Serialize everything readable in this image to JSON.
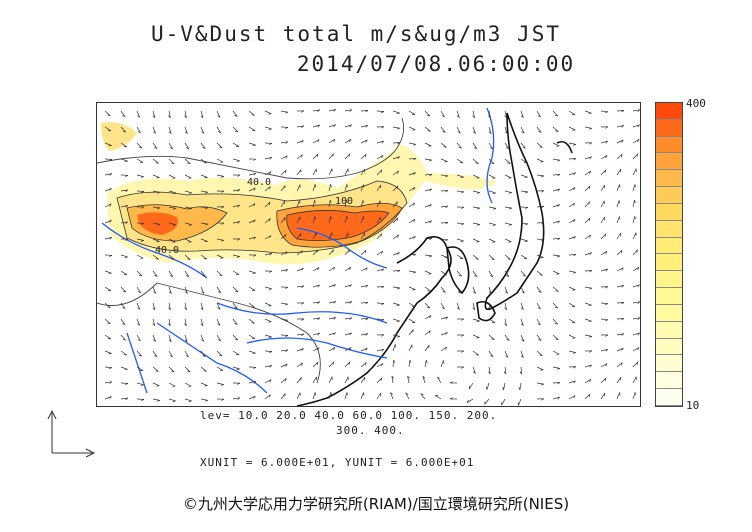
{
  "title": {
    "line1": "U-V&Dust total m/s&ug/m3 JST",
    "line2": "2014/07/08.06:00:00"
  },
  "colorbar": {
    "max_label": "400",
    "min_label": "10",
    "colors": [
      "#ff4a0a",
      "#ff6a1a",
      "#ff8c2a",
      "#ffa33a",
      "#ffb84a",
      "#ffca55",
      "#ffd95e",
      "#ffe36a",
      "#ffec75",
      "#fff07e",
      "#fff588",
      "#fff894",
      "#fffaa0",
      "#fffbb0",
      "#fffcc0",
      "#fffdd0",
      "#fffee0",
      "#fffff0"
    ]
  },
  "levels": {
    "line1": "lev= 10.0 20.0 40.0 60.0 100. 150. 200.",
    "line2": "300. 400."
  },
  "units": "XUNIT = 6.000E+01, YUNIT = 6.000E+01",
  "copyright": "©九州大学応用力学研究所(RIAM)/国立環境研究所(NIES)",
  "contour_labels": [
    "40.0",
    "100",
    "40.0"
  ]
}
